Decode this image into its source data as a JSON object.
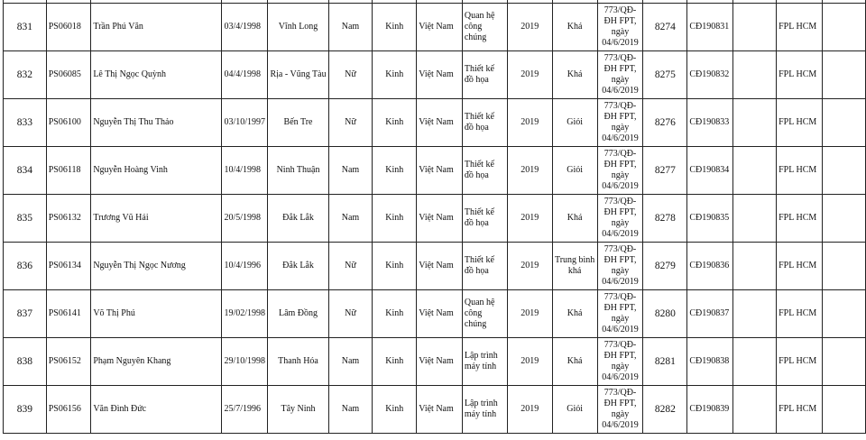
{
  "rows": [
    {
      "stt": "831",
      "code": "PS06018",
      "name": "Trần Phú Văn",
      "dob": "03/4/1998",
      "place": "Vĩnh Long",
      "gender": "Nam",
      "ethnicity": "Kinh",
      "nationality": "Việt Nam",
      "major": "Quan hệ công chúng",
      "year": "2019",
      "rank": "Khá",
      "decision": "773/QĐ-ĐH FPT, ngày 04/6/2019",
      "number": "8274",
      "cert": "CĐ190831",
      "note": "",
      "campus": "FPL HCM",
      "extra": ""
    },
    {
      "stt": "832",
      "code": "PS06085",
      "name": "Lê Thị Ngọc Quỳnh",
      "dob": "04/4/1998",
      "place": "Rịa - Vũng Tàu",
      "gender": "Nữ",
      "ethnicity": "Kinh",
      "nationality": "Việt Nam",
      "major": "Thiết kế đồ họa",
      "year": "2019",
      "rank": "Khá",
      "decision": "773/QĐ-ĐH FPT, ngày 04/6/2019",
      "number": "8275",
      "cert": "CĐ190832",
      "note": "",
      "campus": "FPL HCM",
      "extra": ""
    },
    {
      "stt": "833",
      "code": "PS06100",
      "name": "Nguyễn Thị Thu Thảo",
      "dob": "03/10/1997",
      "place": "Bến Tre",
      "gender": "Nữ",
      "ethnicity": "Kinh",
      "nationality": "Việt Nam",
      "major": "Thiết kế đồ họa",
      "year": "2019",
      "rank": "Giỏi",
      "decision": "773/QĐ-ĐH FPT, ngày 04/6/2019",
      "number": "8276",
      "cert": "CĐ190833",
      "note": "",
      "campus": "FPL HCM",
      "extra": ""
    },
    {
      "stt": "834",
      "code": "PS06118",
      "name": "Nguyễn Hoàng Vinh",
      "dob": "10/4/1998",
      "place": "Ninh Thuận",
      "gender": "Nam",
      "ethnicity": "Kinh",
      "nationality": "Việt Nam",
      "major": "Thiết kế đồ họa",
      "year": "2019",
      "rank": "Giỏi",
      "decision": "773/QĐ-ĐH FPT, ngày 04/6/2019",
      "number": "8277",
      "cert": "CĐ190834",
      "note": "",
      "campus": "FPL HCM",
      "extra": ""
    },
    {
      "stt": "835",
      "code": "PS06132",
      "name": "Trương Vũ Hải",
      "dob": "20/5/1998",
      "place": "Đắk Lắk",
      "gender": "Nam",
      "ethnicity": "Kinh",
      "nationality": "Việt Nam",
      "major": "Thiết kế đồ họa",
      "year": "2019",
      "rank": "Khá",
      "decision": "773/QĐ-ĐH FPT, ngày 04/6/2019",
      "number": "8278",
      "cert": "CĐ190835",
      "note": "",
      "campus": "FPL HCM",
      "extra": ""
    },
    {
      "stt": "836",
      "code": "PS06134",
      "name": "Nguyễn Thị Ngọc Nương",
      "dob": "10/4/1996",
      "place": "Đắk Lắk",
      "gender": "Nữ",
      "ethnicity": "Kinh",
      "nationality": "Việt Nam",
      "major": "Thiết kế đồ họa",
      "year": "2019",
      "rank": "Trung bình khá",
      "decision": "773/QĐ-ĐH FPT, ngày 04/6/2019",
      "number": "8279",
      "cert": "CĐ190836",
      "note": "",
      "campus": "FPL HCM",
      "extra": ""
    },
    {
      "stt": "837",
      "code": "PS06141",
      "name": "Võ Thị Phú",
      "dob": "19/02/1998",
      "place": "Lâm Đồng",
      "gender": "Nữ",
      "ethnicity": "Kinh",
      "nationality": "Việt Nam",
      "major": "Quan hệ công chúng",
      "year": "2019",
      "rank": "Khá",
      "decision": "773/QĐ-ĐH FPT, ngày 04/6/2019",
      "number": "8280",
      "cert": "CĐ190837",
      "note": "",
      "campus": "FPL HCM",
      "extra": ""
    },
    {
      "stt": "838",
      "code": "PS06152",
      "name": "Phạm Nguyên Khang",
      "dob": "29/10/1998",
      "place": "Thanh Hóa",
      "gender": "Nam",
      "ethnicity": "Kinh",
      "nationality": "Việt Nam",
      "major": "Lập trình máy tính",
      "year": "2019",
      "rank": "Khá",
      "decision": "773/QĐ-ĐH FPT, ngày 04/6/2019",
      "number": "8281",
      "cert": "CĐ190838",
      "note": "",
      "campus": "FPL HCM",
      "extra": ""
    },
    {
      "stt": "839",
      "code": "PS06156",
      "name": "Văn Đình Đức",
      "dob": "25/7/1996",
      "place": "Tây Ninh",
      "gender": "Nam",
      "ethnicity": "Kinh",
      "nationality": "Việt Nam",
      "major": "Lập trình máy tính",
      "year": "2019",
      "rank": "Giỏi",
      "decision": "773/QĐ-ĐH FPT, ngày 04/6/2019",
      "number": "8282",
      "cert": "CĐ190839",
      "note": "",
      "campus": "FPL HCM",
      "extra": ""
    }
  ]
}
